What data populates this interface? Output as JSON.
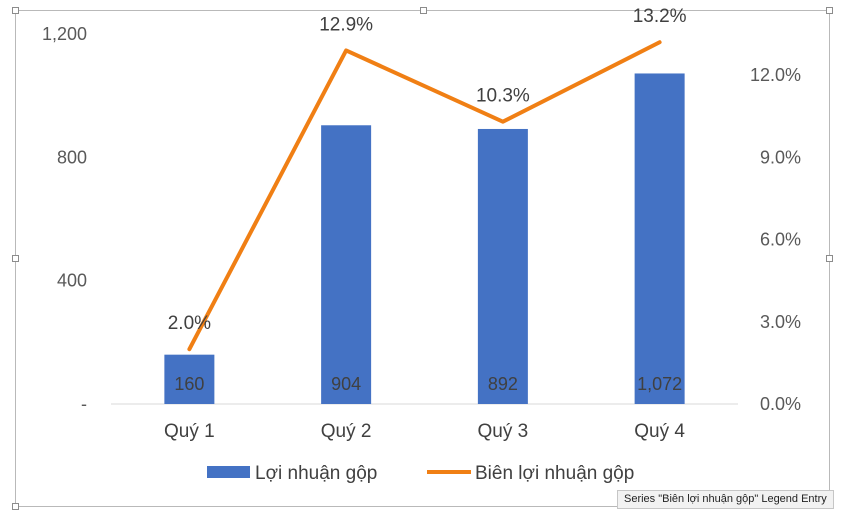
{
  "chart_data": {
    "type": "bar",
    "categories": [
      "Quý 1",
      "Quý 2",
      "Quý 3",
      "Quý 4"
    ],
    "series": [
      {
        "name": "Lợi nhuận gộp",
        "type": "bar",
        "axis": "left",
        "color": "#4472C4",
        "values": [
          160,
          904,
          892,
          1072
        ],
        "labels": [
          "160",
          "904",
          "892",
          "1,072"
        ]
      },
      {
        "name": "Biên lợi nhuận gộp",
        "type": "line",
        "axis": "right",
        "color": "#F07F14",
        "values": [
          2.0,
          12.9,
          10.3,
          13.2
        ],
        "labels": [
          "2.0%",
          "12.9%",
          "10.3%",
          "13.2%"
        ]
      }
    ],
    "ylim": [
      0,
      1200
    ],
    "y_ticks": [
      {
        "value": 0,
        "label": "-"
      },
      {
        "value": 400,
        "label": "400"
      },
      {
        "value": 800,
        "label": "800"
      },
      {
        "value": 1200,
        "label": "1,200"
      }
    ],
    "y2lim": [
      0,
      13.5
    ],
    "y2_ticks": [
      {
        "value": 0,
        "label": "0.0%"
      },
      {
        "value": 3,
        "label": "3.0%"
      },
      {
        "value": 6,
        "label": "6.0%"
      },
      {
        "value": 9,
        "label": "9.0%"
      },
      {
        "value": 12,
        "label": "12.0%"
      }
    ],
    "grid": false,
    "legend_position": "bottom"
  },
  "tooltip": "Series \"Biên lợi nhuận gộp\" Legend Entry"
}
